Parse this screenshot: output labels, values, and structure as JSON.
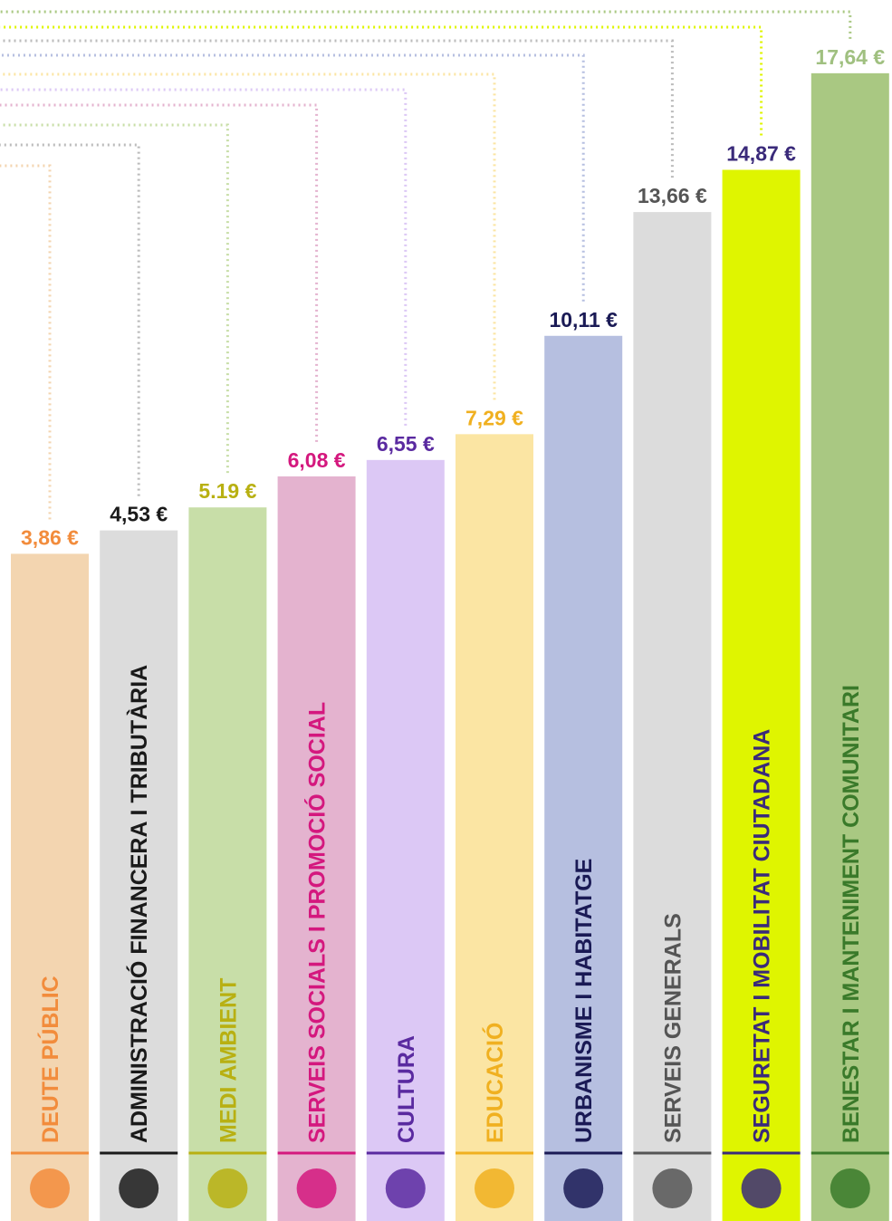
{
  "chart_data": {
    "type": "bar",
    "categories": [
      "DEUTE PÚBLIC",
      "ADMINISTRACIÓ FINANCERA I TRIBUTÀRIA",
      "MEDI AMBIENT",
      "SERVEIS SOCIALS I PROMOCIÓ SOCIAL",
      "CULTURA",
      "EDUCACIÓ",
      "URBANISME I HABITATGE",
      "SERVEIS GENERALS",
      "SEGURETAT I MOBILITAT CIUTADANA",
      "BENESTAR I MANTENIMENT COMUNITARI"
    ],
    "values": [
      3.86,
      4.53,
      5.19,
      6.08,
      6.55,
      7.29,
      10.11,
      13.66,
      14.87,
      17.64
    ],
    "value_labels": [
      "3,86 €",
      "4,53 €",
      "5.19 €",
      "6,08 €",
      "6,55 €",
      "7,29 €",
      "10,11 €",
      "13,66 €",
      "14,87 €",
      "17,64 €"
    ],
    "colors": [
      "#f3d5b0",
      "#dcdcdc",
      "#c8dea8",
      "#e4b3cf",
      "#dcc8f5",
      "#fbe5a3",
      "#b6bfe0",
      "#dcdcdc",
      "#dff500",
      "#a9c882"
    ],
    "label_colors": [
      "#f28c3c",
      "#1a1a1a",
      "#b8b012",
      "#d4187e",
      "#5a2aa0",
      "#f0b020",
      "#1a1a55",
      "#555555",
      "#3a2a7a",
      "#3a7a2a"
    ]
  }
}
